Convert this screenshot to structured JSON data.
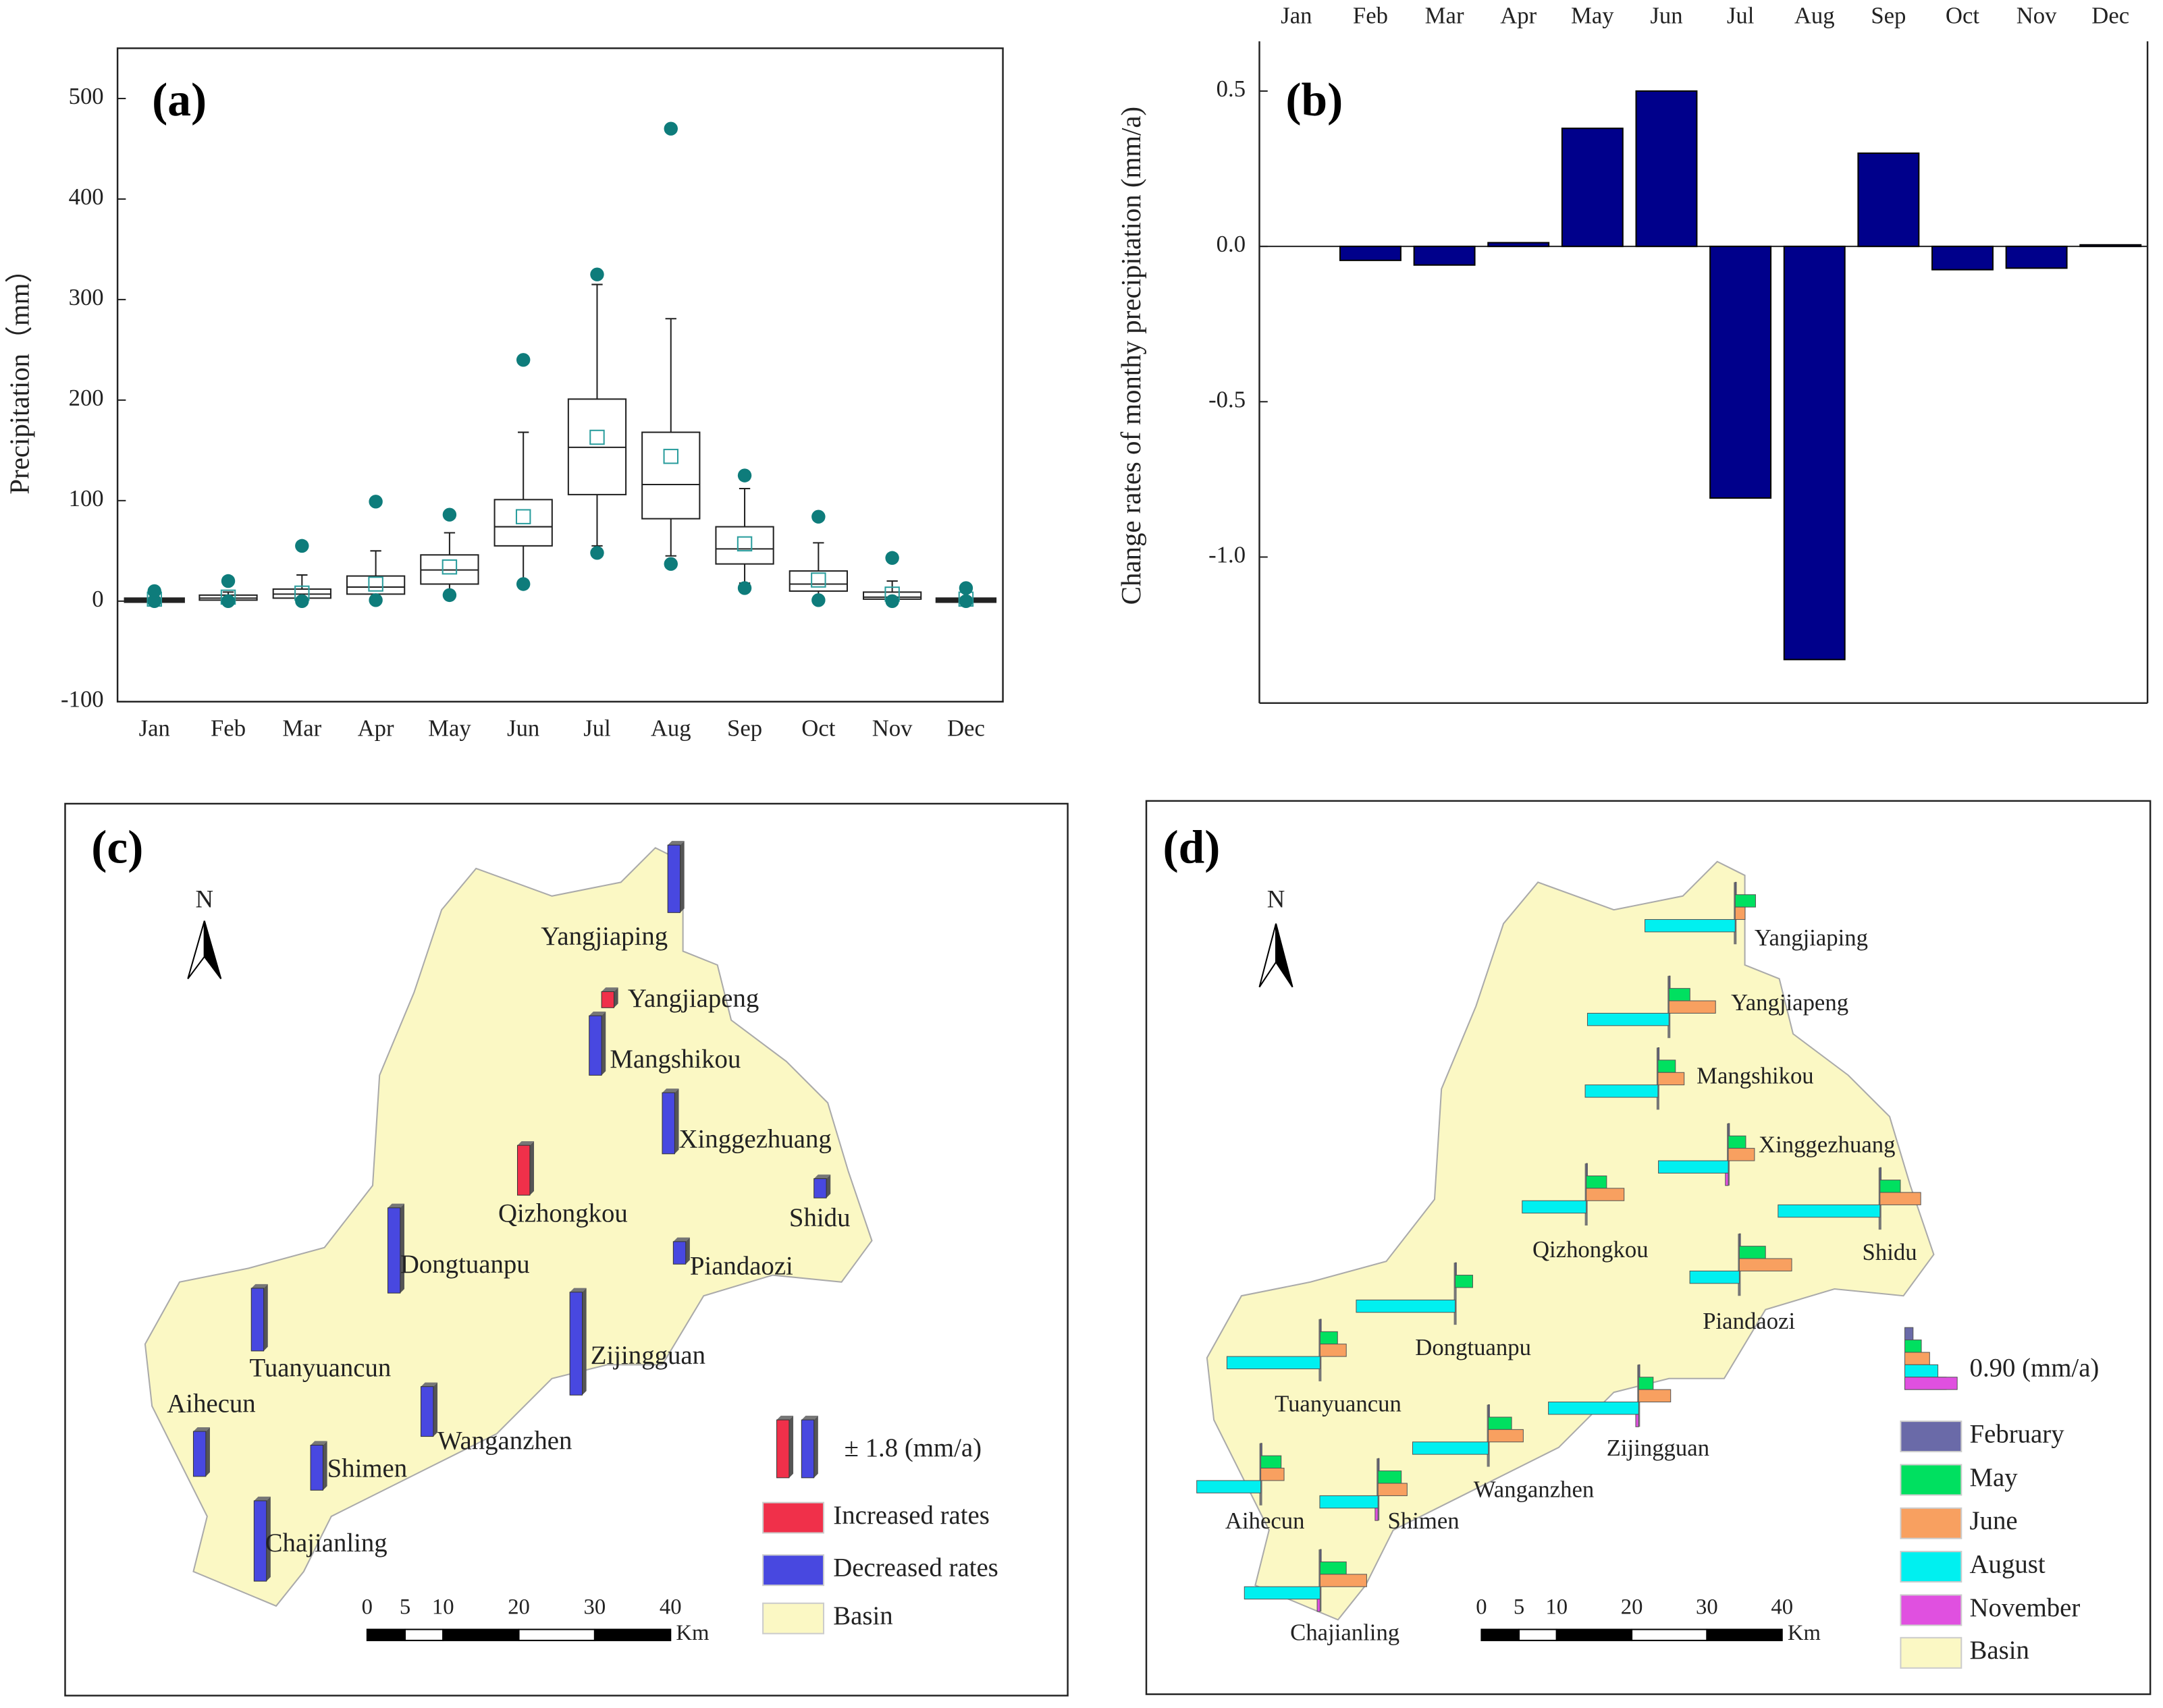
{
  "chart_data": [
    {
      "type": "box",
      "label": "(a)",
      "ylabel": "Precipitation（mm）",
      "categories": [
        "Jan",
        "Feb",
        "Mar",
        "Apr",
        "May",
        "Jun",
        "Jul",
        "Aug",
        "Sep",
        "Oct",
        "Nov",
        "Dec"
      ],
      "whisker_low": [
        0,
        0,
        0,
        2,
        7,
        20,
        55,
        45,
        18,
        2,
        0,
        0
      ],
      "q1": [
        0,
        1,
        3,
        7,
        17,
        55,
        106,
        82,
        37,
        10,
        2,
        0
      ],
      "median": [
        1,
        3,
        7,
        14,
        31,
        74,
        153,
        116,
        52,
        17,
        4,
        1
      ],
      "q3": [
        2,
        6,
        12,
        25,
        46,
        101,
        201,
        168,
        74,
        30,
        9,
        2
      ],
      "whisker_high": [
        4,
        9,
        26,
        50,
        68,
        168,
        315,
        281,
        112,
        58,
        20,
        4
      ],
      "mean": [
        2,
        4,
        8,
        17,
        34,
        84,
        163,
        144,
        57,
        21,
        7,
        2
      ],
      "outliers": [
        [
          10,
          0
        ],
        [
          20,
          0
        ],
        [
          55,
          0
        ],
        [
          99,
          1
        ],
        [
          86,
          6
        ],
        [
          240,
          17
        ],
        [
          325,
          48
        ],
        [
          470,
          37
        ],
        [
          125,
          13
        ],
        [
          84,
          1
        ],
        [
          43,
          0
        ],
        [
          13,
          0
        ]
      ],
      "ylim": [
        -100,
        550
      ],
      "yticks": [
        -100,
        0,
        100,
        200,
        300,
        400,
        500
      ],
      "box_color": "#222222",
      "mean_color": "#2a9d9d",
      "outlier_color": "#0e7c7b"
    },
    {
      "type": "bar",
      "label": "(b)",
      "ylabel": "Change rates of monthy precipitation (mm/a)",
      "categories": [
        "Jan",
        "Feb",
        "Mar",
        "Apr",
        "May",
        "Jun",
        "Jul",
        "Aug",
        "Sep",
        "Oct",
        "Nov",
        "Dec"
      ],
      "values": [
        0,
        -0.045,
        -0.06,
        0.012,
        0.38,
        0.5,
        -0.81,
        -1.33,
        0.3,
        -0.075,
        -0.07,
        0.005
      ],
      "color": "#00008b",
      "ylim": [
        -1.47,
        0.66
      ],
      "yticks": [
        {
          "value": -1,
          "label": "-1.0"
        },
        -0.5,
        {
          "value": 0,
          "label": "0.0"
        },
        0.5
      ]
    },
    {
      "type": "station_map",
      "label": "(c)",
      "north": "N",
      "stations": [
        "Yangjiaping",
        "Yangjiapeng",
        "Mangshikou",
        "Xinggezhuang",
        "Qizhongkou",
        "Shidu",
        "Dongtuanpu",
        "Piandaozi",
        "Tuanyuancun",
        "Zijingguan",
        "Wanganzhen",
        "Aihecun",
        "Shimen",
        "Chajianling"
      ],
      "values": [
        -2.1,
        0.5,
        -1.85,
        -1.9,
        1.55,
        -0.6,
        -2.65,
        -0.7,
        -1.95,
        -3.2,
        -1.55,
        -1.4,
        -1.4,
        -2.5
      ],
      "legend_scale": {
        "value": 1.8,
        "label": "± 1.8 (mm/a)"
      },
      "legend": [
        {
          "name": "Increased rates",
          "color": "#f0304a"
        },
        {
          "name": "Decreased rates",
          "color": "#4848e0"
        },
        {
          "name": "Basin",
          "color": "#fbf8c4"
        }
      ],
      "scale_bar": {
        "ticks": [
          0,
          5,
          10,
          20,
          30,
          40
        ],
        "unit": "Km"
      }
    },
    {
      "type": "station_bars_map",
      "label": "(d)",
      "north": "N",
      "stations": [
        "Yangjiaping",
        "Yangjiapeng",
        "Mangshikou",
        "Xinggezhuang",
        "Qizhongkou",
        "Shidu",
        "Piandaozi",
        "Dongtuanpu",
        "Tuanyuancun",
        "Zijingguan",
        "Wanganzhen",
        "Aihecun",
        "Shimen",
        "Chajianling"
      ],
      "series": [
        {
          "name": "February",
          "color": "#6a6aa8",
          "values": [
            0.02,
            0.02,
            0.02,
            0.02,
            0.02,
            0.02,
            0.02,
            0.02,
            0.02,
            0.02,
            0.02,
            0.02,
            0.02,
            0.02
          ]
        },
        {
          "name": "May",
          "color": "#00e060",
          "values": [
            0.35,
            0.36,
            0.3,
            0.3,
            0.35,
            0.35,
            0.45,
            0.3,
            0.3,
            0.25,
            0.4,
            0.35,
            0.4,
            0.45
          ]
        },
        {
          "name": "June",
          "color": "#f8a060",
          "values": [
            0.17,
            0.8,
            0.45,
            0.45,
            0.65,
            0.7,
            0.9,
            0,
            0.45,
            0.55,
            0.6,
            0.4,
            0.5,
            0.8
          ]
        },
        {
          "name": "August",
          "color": "#00f0f0",
          "values": [
            -1.55,
            -1.4,
            -1.25,
            -1.2,
            -1.1,
            -1.75,
            -0.85,
            -1.7,
            -1.6,
            -1.55,
            -1.3,
            -1.1,
            -1.0,
            -1.3
          ]
        },
        {
          "name": "November",
          "color": "#e050e0",
          "values": [
            0,
            0,
            0,
            -0.05,
            0,
            0,
            0,
            0,
            0,
            -0.05,
            0,
            0,
            -0.05,
            -0.05
          ]
        }
      ],
      "legend_scale": {
        "value": 0.9,
        "label": "0.90 (mm/a)"
      },
      "basin": {
        "name": "Basin",
        "color": "#fbf8c4"
      },
      "scale_bar": {
        "ticks": [
          0,
          5,
          10,
          20,
          30,
          40
        ],
        "unit": "Km"
      }
    }
  ]
}
